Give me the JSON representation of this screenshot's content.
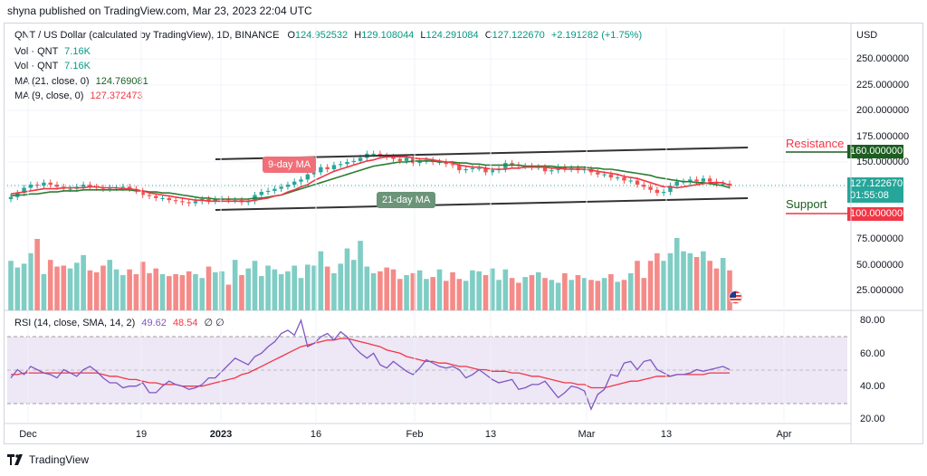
{
  "header": {
    "published": "shyna published on TradingView.com, Mar 23, 2023 22:04 UTC"
  },
  "legend": {
    "symbol": "QNT / US Dollar (calculated by TradingView), 1D, BINANCE",
    "o_label": "O",
    "o": "124.952532",
    "h_label": "H",
    "h": "129.108044",
    "l_label": "L",
    "l": "124.291084",
    "c_label": "C",
    "c": "127.122670",
    "chg": "+2.191282 (+1.75%)",
    "vol1_label": "Vol · QNT",
    "vol1": "7.16K",
    "vol2_label": "Vol · QNT",
    "vol2": "7.16K",
    "ma21_label": "MA (21, close, 0)",
    "ma21": "124.769081",
    "ma9_label": "MA (9, close, 0)",
    "ma9": "127.372473",
    "rsi_label": "RSI (14, close, SMA, 14, 2)",
    "rsi": "49.62",
    "rsi_sma": "48.54",
    "rsi_extra": "∅ ∅"
  },
  "price_axis": {
    "currency": "USD",
    "ticks": [
      "250.000000",
      "225.000000",
      "200.000000",
      "175.000000",
      "150.000000",
      "125.000000",
      "100.000000",
      "75.000000",
      "50.000000",
      "25.000000"
    ]
  },
  "rsi_axis": {
    "ticks": [
      "80.00",
      "60.00",
      "40.00",
      "20.00"
    ]
  },
  "badges": {
    "last_price": "127.122670",
    "countdown": "01:55:08",
    "resistance_value": "160.000000",
    "support_value": "100.000000"
  },
  "annotations": {
    "resistance": "Resistance",
    "support": "Support",
    "ma9_callout": "9-day MA",
    "ma21_callout": "21-day MA"
  },
  "footer": {
    "brand": "TradingView"
  },
  "colors": {
    "up": "#26a69a",
    "down": "#ef5350",
    "ma9": "#f23645",
    "ma21": "#2e7d32",
    "rsi": "#7e57c2",
    "rsi_band": "#ede7f6",
    "resistance": "#f23645",
    "support": "#1b5e20"
  },
  "chart_data": {
    "type": "candlestick",
    "x_ticks": [
      "Dec",
      "19",
      "2023",
      "16",
      "Feb",
      "13",
      "Mar",
      "13",
      "Apr"
    ],
    "price_range": [
      0,
      260
    ],
    "close": [
      116,
      120,
      125,
      128,
      127,
      130,
      128,
      126,
      124,
      124,
      126,
      128,
      126,
      125,
      124,
      125,
      125,
      126,
      124,
      122,
      118,
      117,
      115,
      115,
      113,
      112,
      111,
      110,
      112,
      114,
      112,
      114,
      114,
      113,
      113,
      111,
      112,
      118,
      121,
      122,
      124,
      126,
      128,
      131,
      133,
      138,
      140,
      145,
      143,
      147,
      148,
      150,
      151,
      154,
      158,
      158,
      156,
      155,
      153,
      151,
      154,
      149,
      151,
      152,
      150,
      150,
      148,
      147,
      142,
      143,
      144,
      144,
      140,
      142,
      143,
      149,
      147,
      146,
      146,
      145,
      145,
      141,
      142,
      145,
      143,
      144,
      142,
      143,
      140,
      138,
      138,
      135,
      135,
      132,
      132,
      128,
      126,
      123,
      120,
      121,
      127,
      131,
      131,
      133,
      131,
      134,
      131,
      129,
      129,
      127
    ],
    "ma9": [
      119,
      120,
      121,
      122,
      123,
      124,
      124,
      124,
      125,
      125,
      125,
      125,
      126,
      126,
      125,
      125,
      125,
      124,
      124,
      123,
      122,
      120,
      119,
      118,
      117,
      116,
      115,
      114,
      113,
      113,
      112,
      112,
      112,
      112,
      112,
      112,
      112,
      113,
      114,
      115,
      117,
      118,
      121,
      123,
      126,
      128,
      132,
      135,
      138,
      141,
      143,
      145,
      147,
      149,
      151,
      152,
      154,
      155,
      155,
      155,
      155,
      154,
      153,
      153,
      152,
      151,
      150,
      149,
      147,
      146,
      145,
      145,
      144,
      143,
      143,
      143,
      144,
      144,
      145,
      145,
      145,
      145,
      144,
      144,
      143,
      143,
      143,
      143,
      142,
      141,
      140,
      139,
      138,
      136,
      135,
      134,
      132,
      130,
      128,
      126,
      126,
      125,
      126,
      127,
      128,
      129,
      130,
      130,
      130,
      127
    ],
    "ma21": [
      117,
      118,
      118,
      119,
      119,
      120,
      121,
      121,
      122,
      122,
      122,
      123,
      123,
      123,
      123,
      123,
      123,
      123,
      123,
      122,
      122,
      121,
      121,
      120,
      120,
      119,
      118,
      117,
      116,
      115,
      115,
      114,
      114,
      114,
      114,
      114,
      114,
      115,
      115,
      116,
      117,
      118,
      120,
      122,
      124,
      126,
      128,
      130,
      132,
      134,
      136,
      138,
      140,
      142,
      144,
      146,
      147,
      148,
      149,
      150,
      150,
      151,
      151,
      151,
      151,
      150,
      150,
      150,
      149,
      149,
      148,
      148,
      147,
      147,
      147,
      147,
      147,
      147,
      146,
      146,
      146,
      146,
      146,
      145,
      145,
      145,
      145,
      145,
      144,
      144,
      143,
      143,
      142,
      141,
      140,
      139,
      138,
      137,
      135,
      134,
      133,
      132,
      131,
      131,
      130,
      130,
      129,
      128,
      127,
      125
    ],
    "volume": [
      52,
      45,
      49,
      60,
      75,
      38,
      53,
      46,
      47,
      44,
      50,
      58,
      42,
      40,
      47,
      53,
      43,
      37,
      43,
      38,
      51,
      39,
      44,
      38,
      36,
      38,
      37,
      41,
      38,
      34,
      46,
      40,
      41,
      27,
      53,
      37,
      44,
      52,
      36,
      47,
      43,
      38,
      41,
      47,
      34,
      48,
      47,
      62,
      46,
      39,
      49,
      65,
      53,
      73,
      46,
      39,
      41,
      45,
      43,
      33,
      37,
      39,
      42,
      33,
      35,
      43,
      31,
      40,
      33,
      31,
      42,
      41,
      37,
      44,
      32,
      43,
      34,
      29,
      35,
      37,
      40,
      34,
      32,
      29,
      39,
      32,
      37,
      34,
      32,
      31,
      34,
      38,
      30,
      32,
      39,
      52,
      34,
      52,
      60,
      52,
      60,
      76,
      62,
      60,
      56,
      62,
      52,
      44,
      55,
      42
    ],
    "rsi": [
      45,
      50,
      47,
      52,
      50,
      48,
      47,
      45,
      50,
      48,
      46,
      50,
      52,
      49,
      45,
      42,
      42,
      39,
      40,
      40,
      42,
      36,
      36,
      40,
      43,
      41,
      40,
      38,
      39,
      41,
      45,
      45,
      49,
      53,
      57,
      55,
      53,
      58,
      60,
      64,
      67,
      72,
      74,
      71,
      80,
      64,
      66,
      70,
      72,
      68,
      73,
      70,
      64,
      60,
      57,
      60,
      53,
      51,
      55,
      52,
      49,
      47,
      51,
      56,
      54,
      52,
      51,
      52,
      50,
      45,
      47,
      50,
      47,
      44,
      42,
      43,
      44,
      38,
      39,
      41,
      41,
      43,
      38,
      33,
      36,
      40,
      39,
      37,
      26,
      35,
      38,
      47,
      46,
      54,
      55,
      50,
      55,
      56,
      50,
      48,
      46,
      47,
      47,
      48,
      50,
      49,
      50,
      51,
      52,
      50
    ],
    "rsi_sma": [
      47,
      47,
      48,
      48,
      48,
      48,
      48,
      48,
      48,
      48,
      48,
      48,
      48,
      48,
      47,
      46,
      46,
      45,
      44,
      44,
      43,
      42,
      42,
      41,
      41,
      41,
      40,
      40,
      40,
      40,
      41,
      42,
      43,
      44,
      45,
      47,
      48,
      50,
      52,
      54,
      56,
      58,
      60,
      62,
      64,
      65,
      66,
      67,
      68,
      68,
      69,
      69,
      68,
      67,
      66,
      65,
      64,
      62,
      61,
      60,
      58,
      57,
      56,
      55,
      55,
      54,
      54,
      53,
      52,
      52,
      51,
      50,
      50,
      49,
      49,
      49,
      48,
      48,
      47,
      46,
      46,
      45,
      44,
      43,
      42,
      42,
      41,
      41,
      39,
      39,
      39,
      40,
      41,
      42,
      43,
      43,
      44,
      45,
      46,
      46,
      46,
      47,
      47,
      47,
      47,
      47,
      48,
      48,
      48,
      48
    ],
    "rsi_range": [
      20,
      80
    ],
    "rsi_bands": [
      30,
      50,
      70
    ]
  }
}
